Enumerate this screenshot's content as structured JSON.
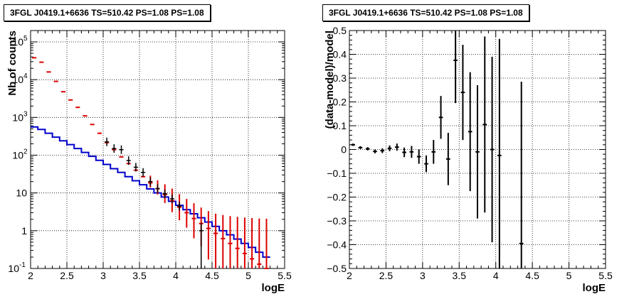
{
  "chart_data": [
    {
      "type": "line",
      "title": "3FGL J0419.1+6636 TS=510.42 PS=1.08 PS=1.08",
      "xlabel": "logE",
      "ylabel": "Nb of counts",
      "xlim": [
        2,
        5.5
      ],
      "ylim": [
        0.1,
        200000
      ],
      "yscale": "log",
      "grid": true,
      "x_ticks": [
        "2",
        "2.5",
        "3",
        "3.5",
        "4",
        "4.5",
        "5",
        "5.5"
      ],
      "y_ticks": [
        "10^-1",
        "1",
        "10",
        "10^2",
        "10^3",
        "10^4",
        "10^5"
      ],
      "series": [
        {
          "role": "model histogram",
          "color": "#0000cc",
          "bin_edges": [
            2.0,
            2.1,
            2.2,
            2.3,
            2.4,
            2.5,
            2.6,
            2.7,
            2.8,
            2.9,
            3.0,
            3.1,
            3.2,
            3.3,
            3.4,
            3.5,
            3.6,
            3.7,
            3.8,
            3.9,
            4.0,
            4.1,
            4.2,
            4.3,
            4.4,
            4.5,
            4.6,
            4.7,
            4.8,
            4.9,
            5.0,
            5.1,
            5.2,
            5.3
          ],
          "values": [
            560,
            480,
            380,
            300,
            240,
            190,
            150,
            118,
            93,
            73,
            57,
            44,
            35,
            27,
            21,
            16.5,
            12.8,
            10,
            7.8,
            6,
            4.7,
            3.6,
            2.8,
            2.2,
            1.7,
            1.3,
            1.0,
            0.78,
            0.6,
            0.46,
            0.36,
            0.27,
            0.2
          ]
        },
        {
          "role": "model points",
          "color": "#dd0000",
          "x": [
            2.05,
            2.15,
            2.25,
            2.35,
            2.45,
            2.55,
            2.65,
            2.75,
            2.85,
            2.95,
            3.05,
            3.15,
            3.25,
            3.35,
            3.45,
            3.55,
            3.65,
            3.75,
            3.85,
            3.95,
            4.05,
            4.15,
            4.25,
            4.35,
            4.45,
            4.55,
            4.65,
            4.75,
            4.85,
            4.95,
            5.05,
            5.15,
            5.25
          ],
          "y": [
            38000,
            29000,
            16000,
            9000,
            4800,
            2900,
            1850,
            1100,
            650,
            380,
            215,
            140,
            90,
            60,
            40,
            27,
            18.5,
            13,
            9,
            6.2,
            4.2,
            3.0,
            2.1,
            1.55,
            1.15,
            0.85,
            0.62,
            0.46,
            0.34,
            0.25,
            0.18,
            0.13,
            0.1
          ],
          "err": [
            0,
            0,
            0,
            0,
            0,
            0,
            0,
            0,
            0,
            0,
            0,
            0,
            0,
            0,
            0,
            0,
            0.25,
            0.3,
            0.4,
            0.5,
            0.55,
            0.6,
            0.7,
            0.75,
            0.85,
            0.9,
            0.9,
            0.9,
            0.9,
            0.9,
            0.9,
            0.9,
            0.9
          ]
        },
        {
          "role": "data points",
          "color": "#000000",
          "x": [
            3.05,
            3.15,
            3.25,
            3.35,
            3.45,
            3.55,
            3.65,
            3.75,
            3.85,
            3.95,
            4.05,
            4.35
          ],
          "y": [
            225,
            150,
            140,
            72,
            48,
            35,
            20,
            13,
            9.5,
            7,
            4.5,
            1
          ]
        }
      ]
    },
    {
      "type": "scatter",
      "title": "3FGL J0419.1+6636 TS=510.42 PS=1.08 PS=1.08",
      "xlabel": "logE",
      "ylabel": "(data-model)/model",
      "xlim": [
        2,
        5.5
      ],
      "ylim": [
        -0.5,
        0.5
      ],
      "grid": true,
      "x_ticks": [
        "2",
        "2.5",
        "3",
        "3.5",
        "4",
        "4.5",
        "5",
        "5.5"
      ],
      "y_ticks": [
        "−0.5",
        "−0.4",
        "−0.3",
        "−0.2",
        "−0.1",
        "0",
        "0.1",
        "0.2",
        "0.3",
        "0.4",
        "0.5"
      ],
      "series": [
        {
          "role": "residuals",
          "color": "#000000",
          "x": [
            2.05,
            2.15,
            2.25,
            2.35,
            2.45,
            2.55,
            2.65,
            2.75,
            2.85,
            2.95,
            3.05,
            3.15,
            3.25,
            3.35,
            3.45,
            3.55,
            3.65,
            3.75,
            3.85,
            3.95,
            4.05,
            4.35
          ],
          "y": [
            0.02,
            0.008,
            0.003,
            -0.008,
            -0.005,
            0.005,
            0.01,
            -0.012,
            -0.01,
            -0.03,
            -0.06,
            -0.01,
            0.135,
            -0.04,
            0.375,
            0.24,
            0.075,
            -0.01,
            0.105,
            0.0,
            -0.025,
            -0.395
          ],
          "err": [
            0.005,
            0.006,
            0.007,
            0.008,
            0.01,
            0.012,
            0.015,
            0.02,
            0.025,
            0.03,
            0.035,
            0.05,
            0.09,
            0.11,
            0.18,
            0.2,
            0.25,
            0.28,
            0.37,
            0.39,
            0.49,
            0.68
          ]
        }
      ]
    }
  ]
}
